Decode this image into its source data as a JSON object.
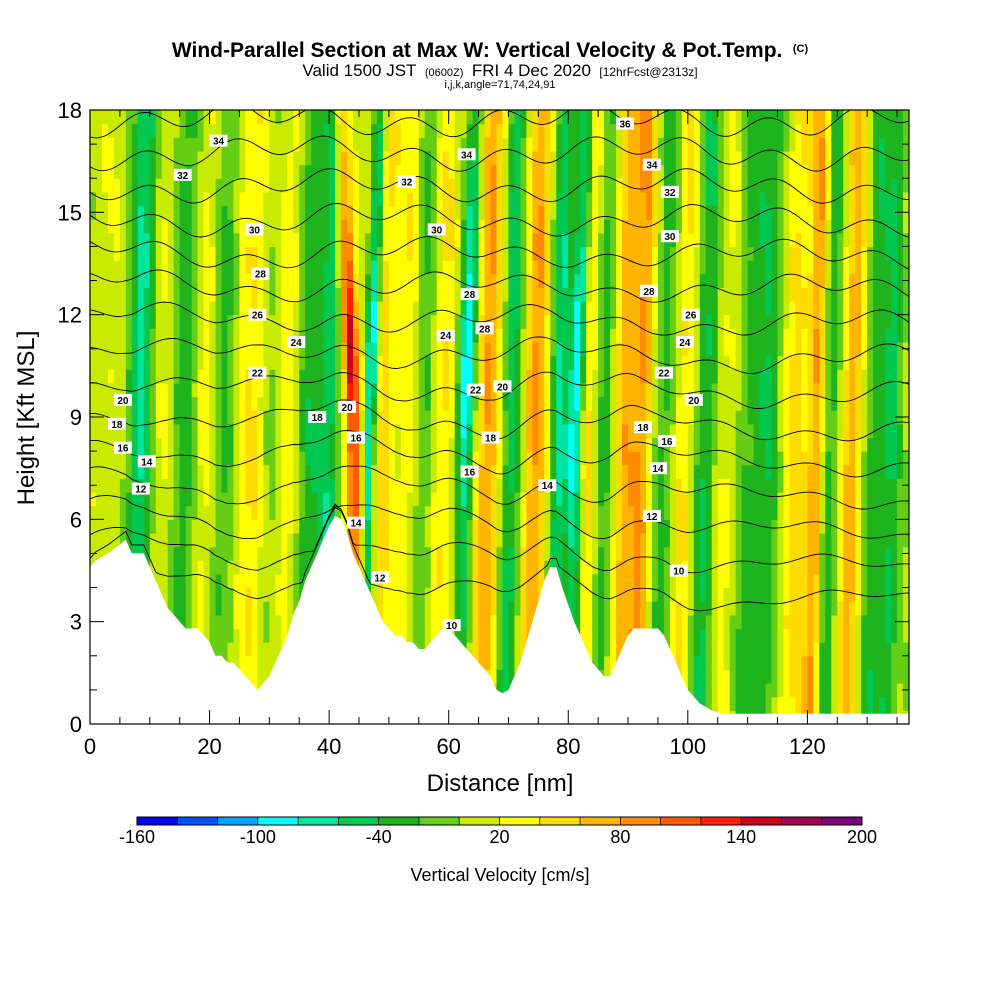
{
  "header": {
    "title": "Wind-Parallel Section at Max W: Vertical Velocity & Pot.Temp.",
    "title_mark": "(C)",
    "valid_prefix": "Valid 1500 JST",
    "valid_utc": "(0600Z)",
    "valid_date": "FRI 4 Dec 2020",
    "fcst_note": "[12hrFcst@2313z]",
    "indices": "i,j,k,angle=71,74,24,91"
  },
  "chart_data": {
    "type": "heatmap",
    "xlabel": "Distance [nm]",
    "ylabel": "Height [Kft MSL]",
    "xlim": [
      0,
      137
    ],
    "ylim": [
      0,
      18
    ],
    "x_ticks": [
      0,
      20,
      40,
      60,
      80,
      100,
      120
    ],
    "y_ticks": [
      0,
      3,
      6,
      9,
      12,
      15,
      18
    ],
    "x_tick_labels": [
      "0",
      "20",
      "40",
      "60",
      "80",
      "100",
      "120"
    ],
    "y_tick_labels": [
      "0",
      "3",
      "6",
      "9",
      "12",
      "15",
      "18"
    ],
    "terrain": {
      "x": [
        0,
        1,
        3,
        6,
        7,
        9,
        10,
        11,
        12,
        13,
        14,
        15,
        16,
        17,
        18,
        19,
        20,
        21,
        22,
        23,
        24,
        25,
        26,
        27,
        28,
        29,
        30,
        31,
        32,
        33,
        34,
        35,
        36,
        37,
        38,
        39,
        40,
        41,
        42,
        43,
        44,
        45,
        46,
        47,
        48,
        49,
        50,
        51,
        52,
        53,
        54,
        55,
        56,
        57,
        58,
        59,
        60,
        61,
        62,
        63,
        64,
        65,
        66,
        67,
        68,
        69,
        70,
        71,
        72,
        73,
        74,
        75,
        76,
        77,
        78,
        79,
        80,
        81,
        82,
        83,
        84,
        85,
        86,
        87,
        88,
        89,
        90,
        91,
        92,
        93,
        94,
        95,
        96,
        97,
        98,
        99,
        100,
        101,
        102,
        103,
        104,
        106,
        110,
        120,
        130,
        137
      ],
      "y": [
        4.6,
        4.8,
        5.0,
        5.4,
        5.0,
        5.0,
        4.6,
        4.2,
        3.8,
        3.4,
        3.2,
        3.0,
        2.8,
        2.8,
        2.8,
        2.6,
        2.4,
        2.0,
        2.0,
        1.8,
        1.8,
        1.6,
        1.4,
        1.2,
        1.0,
        1.2,
        1.4,
        1.8,
        2.2,
        2.6,
        3.2,
        3.6,
        4.2,
        4.6,
        5.0,
        5.4,
        5.8,
        6.1,
        6.0,
        5.6,
        5.0,
        4.6,
        4.2,
        3.8,
        3.4,
        3.0,
        2.8,
        2.6,
        2.6,
        2.4,
        2.4,
        2.2,
        2.2,
        2.4,
        2.6,
        2.8,
        2.8,
        2.6,
        2.4,
        2.2,
        2.0,
        1.8,
        1.6,
        1.4,
        1.0,
        0.9,
        1.0,
        1.4,
        1.8,
        2.4,
        3.0,
        3.6,
        4.2,
        4.6,
        4.6,
        4.0,
        3.5,
        3.0,
        2.6,
        2.2,
        1.8,
        1.6,
        1.4,
        1.4,
        1.8,
        2.2,
        2.6,
        2.8,
        2.8,
        2.8,
        2.8,
        2.8,
        2.6,
        2.2,
        1.8,
        1.4,
        1.0,
        0.8,
        0.6,
        0.5,
        0.4,
        0.3,
        0.3,
        0.3,
        0.3,
        0.3
      ]
    },
    "w_bands": [
      {
        "x": 3,
        "w": 3.0,
        "v": 10
      },
      {
        "x": 8.5,
        "w": 2.2,
        "v": -70
      },
      {
        "x": 11.5,
        "w": 2.0,
        "v": 20
      },
      {
        "x": 16,
        "w": 2.2,
        "v": -40
      },
      {
        "x": 19,
        "w": 2.5,
        "v": 25
      },
      {
        "x": 22.5,
        "w": 2.0,
        "v": -35
      },
      {
        "x": 27,
        "w": 2.8,
        "v": 35
      },
      {
        "x": 30.5,
        "w": 2.0,
        "v": -20
      },
      {
        "x": 33,
        "w": 2.0,
        "v": 30
      },
      {
        "x": 36.5,
        "w": 2.0,
        "v": -40
      },
      {
        "x": 40,
        "w": 1.8,
        "v": -60
      },
      {
        "x": 44.2,
        "w": 1.4,
        "v": 145
      },
      {
        "x": 46.5,
        "w": 1.1,
        "v": -110
      },
      {
        "x": 49,
        "w": 1.8,
        "v": 45
      },
      {
        "x": 53,
        "w": 1.8,
        "v": 30
      },
      {
        "x": 56,
        "w": 1.8,
        "v": -30
      },
      {
        "x": 59,
        "w": 2.0,
        "v": 35
      },
      {
        "x": 62.6,
        "w": 1.5,
        "v": -110
      },
      {
        "x": 66.5,
        "w": 2.4,
        "v": 75
      },
      {
        "x": 70.5,
        "w": 1.8,
        "v": -60
      },
      {
        "x": 74.5,
        "w": 2.0,
        "v": 75
      },
      {
        "x": 78.5,
        "w": 1.4,
        "v": -70
      },
      {
        "x": 81,
        "w": 1.3,
        "v": -110
      },
      {
        "x": 83.5,
        "w": 1.6,
        "v": 40
      },
      {
        "x": 86,
        "w": 1.5,
        "v": -35
      },
      {
        "x": 89.5,
        "w": 1.8,
        "v": 60
      },
      {
        "x": 92.5,
        "w": 1.8,
        "v": 75
      },
      {
        "x": 96,
        "w": 2.0,
        "v": -40
      },
      {
        "x": 99.5,
        "w": 2.0,
        "v": 40
      },
      {
        "x": 103,
        "w": 2.0,
        "v": -50
      },
      {
        "x": 106.5,
        "w": 2.2,
        "v": 20
      },
      {
        "x": 110,
        "w": 2.0,
        "v": -30
      },
      {
        "x": 113.5,
        "w": 2.2,
        "v": -45
      },
      {
        "x": 118,
        "w": 2.5,
        "v": 40
      },
      {
        "x": 121.5,
        "w": 1.3,
        "v": 70
      },
      {
        "x": 124,
        "w": 1.5,
        "v": -40
      },
      {
        "x": 127.5,
        "w": 1.8,
        "v": 65
      },
      {
        "x": 131,
        "w": 1.6,
        "v": -40
      },
      {
        "x": 134,
        "w": 1.6,
        "v": -50
      }
    ],
    "theta_levels": [
      10,
      12,
      14,
      16,
      18,
      20,
      22,
      24,
      26,
      28,
      30,
      32,
      34,
      36
    ],
    "contour_labels": [
      {
        "x": 21.5,
        "y": 17.1,
        "text": "34"
      },
      {
        "x": 15.5,
        "y": 16.1,
        "text": "32"
      },
      {
        "x": 27.5,
        "y": 14.5,
        "text": "30"
      },
      {
        "x": 28.5,
        "y": 13.2,
        "text": "28"
      },
      {
        "x": 28,
        "y": 12.0,
        "text": "26"
      },
      {
        "x": 34.5,
        "y": 11.2,
        "text": "24"
      },
      {
        "x": 28,
        "y": 10.3,
        "text": "22"
      },
      {
        "x": 5.5,
        "y": 9.5,
        "text": "20"
      },
      {
        "x": 4.5,
        "y": 8.8,
        "text": "18"
      },
      {
        "x": 5.5,
        "y": 8.1,
        "text": "16"
      },
      {
        "x": 9.5,
        "y": 7.7,
        "text": "14"
      },
      {
        "x": 8.5,
        "y": 6.9,
        "text": "12"
      },
      {
        "x": 38,
        "y": 9.0,
        "text": "18"
      },
      {
        "x": 43,
        "y": 9.3,
        "text": "20"
      },
      {
        "x": 44.5,
        "y": 8.4,
        "text": "16"
      },
      {
        "x": 44.5,
        "y": 5.9,
        "text": "14"
      },
      {
        "x": 48.5,
        "y": 4.3,
        "text": "12"
      },
      {
        "x": 53,
        "y": 15.9,
        "text": "32"
      },
      {
        "x": 58,
        "y": 14.5,
        "text": "30"
      },
      {
        "x": 63,
        "y": 16.7,
        "text": "34"
      },
      {
        "x": 63.5,
        "y": 12.6,
        "text": "28"
      },
      {
        "x": 66,
        "y": 11.6,
        "text": "28"
      },
      {
        "x": 59.5,
        "y": 11.4,
        "text": "24"
      },
      {
        "x": 64.5,
        "y": 9.8,
        "text": "22"
      },
      {
        "x": 69,
        "y": 9.9,
        "text": "20"
      },
      {
        "x": 67,
        "y": 8.4,
        "text": "18"
      },
      {
        "x": 63.5,
        "y": 7.4,
        "text": "16"
      },
      {
        "x": 76.5,
        "y": 7.0,
        "text": "14"
      },
      {
        "x": 60.5,
        "y": 2.9,
        "text": "10"
      },
      {
        "x": 89.5,
        "y": 17.6,
        "text": "36"
      },
      {
        "x": 94,
        "y": 16.4,
        "text": "34"
      },
      {
        "x": 97,
        "y": 15.6,
        "text": "32"
      },
      {
        "x": 97,
        "y": 14.3,
        "text": "30"
      },
      {
        "x": 93.5,
        "y": 12.7,
        "text": "28"
      },
      {
        "x": 100.5,
        "y": 12.0,
        "text": "26"
      },
      {
        "x": 99.5,
        "y": 11.2,
        "text": "24"
      },
      {
        "x": 96,
        "y": 10.3,
        "text": "22"
      },
      {
        "x": 101,
        "y": 9.5,
        "text": "20"
      },
      {
        "x": 92.5,
        "y": 8.7,
        "text": "18"
      },
      {
        "x": 96.5,
        "y": 8.3,
        "text": "16"
      },
      {
        "x": 95,
        "y": 7.5,
        "text": "14"
      },
      {
        "x": 94,
        "y": 6.1,
        "text": "12"
      },
      {
        "x": 98.5,
        "y": 4.5,
        "text": "10"
      }
    ],
    "colorbar": {
      "title": "Vertical Velocity [cm/s]",
      "tick_labels": [
        "-160",
        "-100",
        "-40",
        "20",
        "80",
        "140",
        "200"
      ],
      "tick_values": [
        -160,
        -100,
        -40,
        20,
        80,
        140,
        200
      ],
      "bins": [
        {
          "lo": -160,
          "hi": -140,
          "color": "#0000ff"
        },
        {
          "lo": -140,
          "hi": -120,
          "color": "#0050ff"
        },
        {
          "lo": -120,
          "hi": -100,
          "color": "#00a0ff"
        },
        {
          "lo": -100,
          "hi": -80,
          "color": "#00ffff"
        },
        {
          "lo": -80,
          "hi": -60,
          "color": "#00e6a0"
        },
        {
          "lo": -60,
          "hi": -40,
          "color": "#00c850"
        },
        {
          "lo": -40,
          "hi": -20,
          "color": "#1eb41e"
        },
        {
          "lo": -20,
          "hi": 0,
          "color": "#64cd14"
        },
        {
          "lo": 0,
          "hi": 20,
          "color": "#c8eb00"
        },
        {
          "lo": 20,
          "hi": 40,
          "color": "#ffff00"
        },
        {
          "lo": 40,
          "hi": 60,
          "color": "#ffdc00"
        },
        {
          "lo": 60,
          "hi": 80,
          "color": "#ffb400"
        },
        {
          "lo": 80,
          "hi": 100,
          "color": "#ff8c00"
        },
        {
          "lo": 100,
          "hi": 120,
          "color": "#ff5a00"
        },
        {
          "lo": 120,
          "hi": 140,
          "color": "#ff1e00"
        },
        {
          "lo": 140,
          "hi": 160,
          "color": "#c8001e"
        },
        {
          "lo": 160,
          "hi": 180,
          "color": "#a00050"
        },
        {
          "lo": 180,
          "hi": 200,
          "color": "#780078"
        }
      ]
    }
  }
}
